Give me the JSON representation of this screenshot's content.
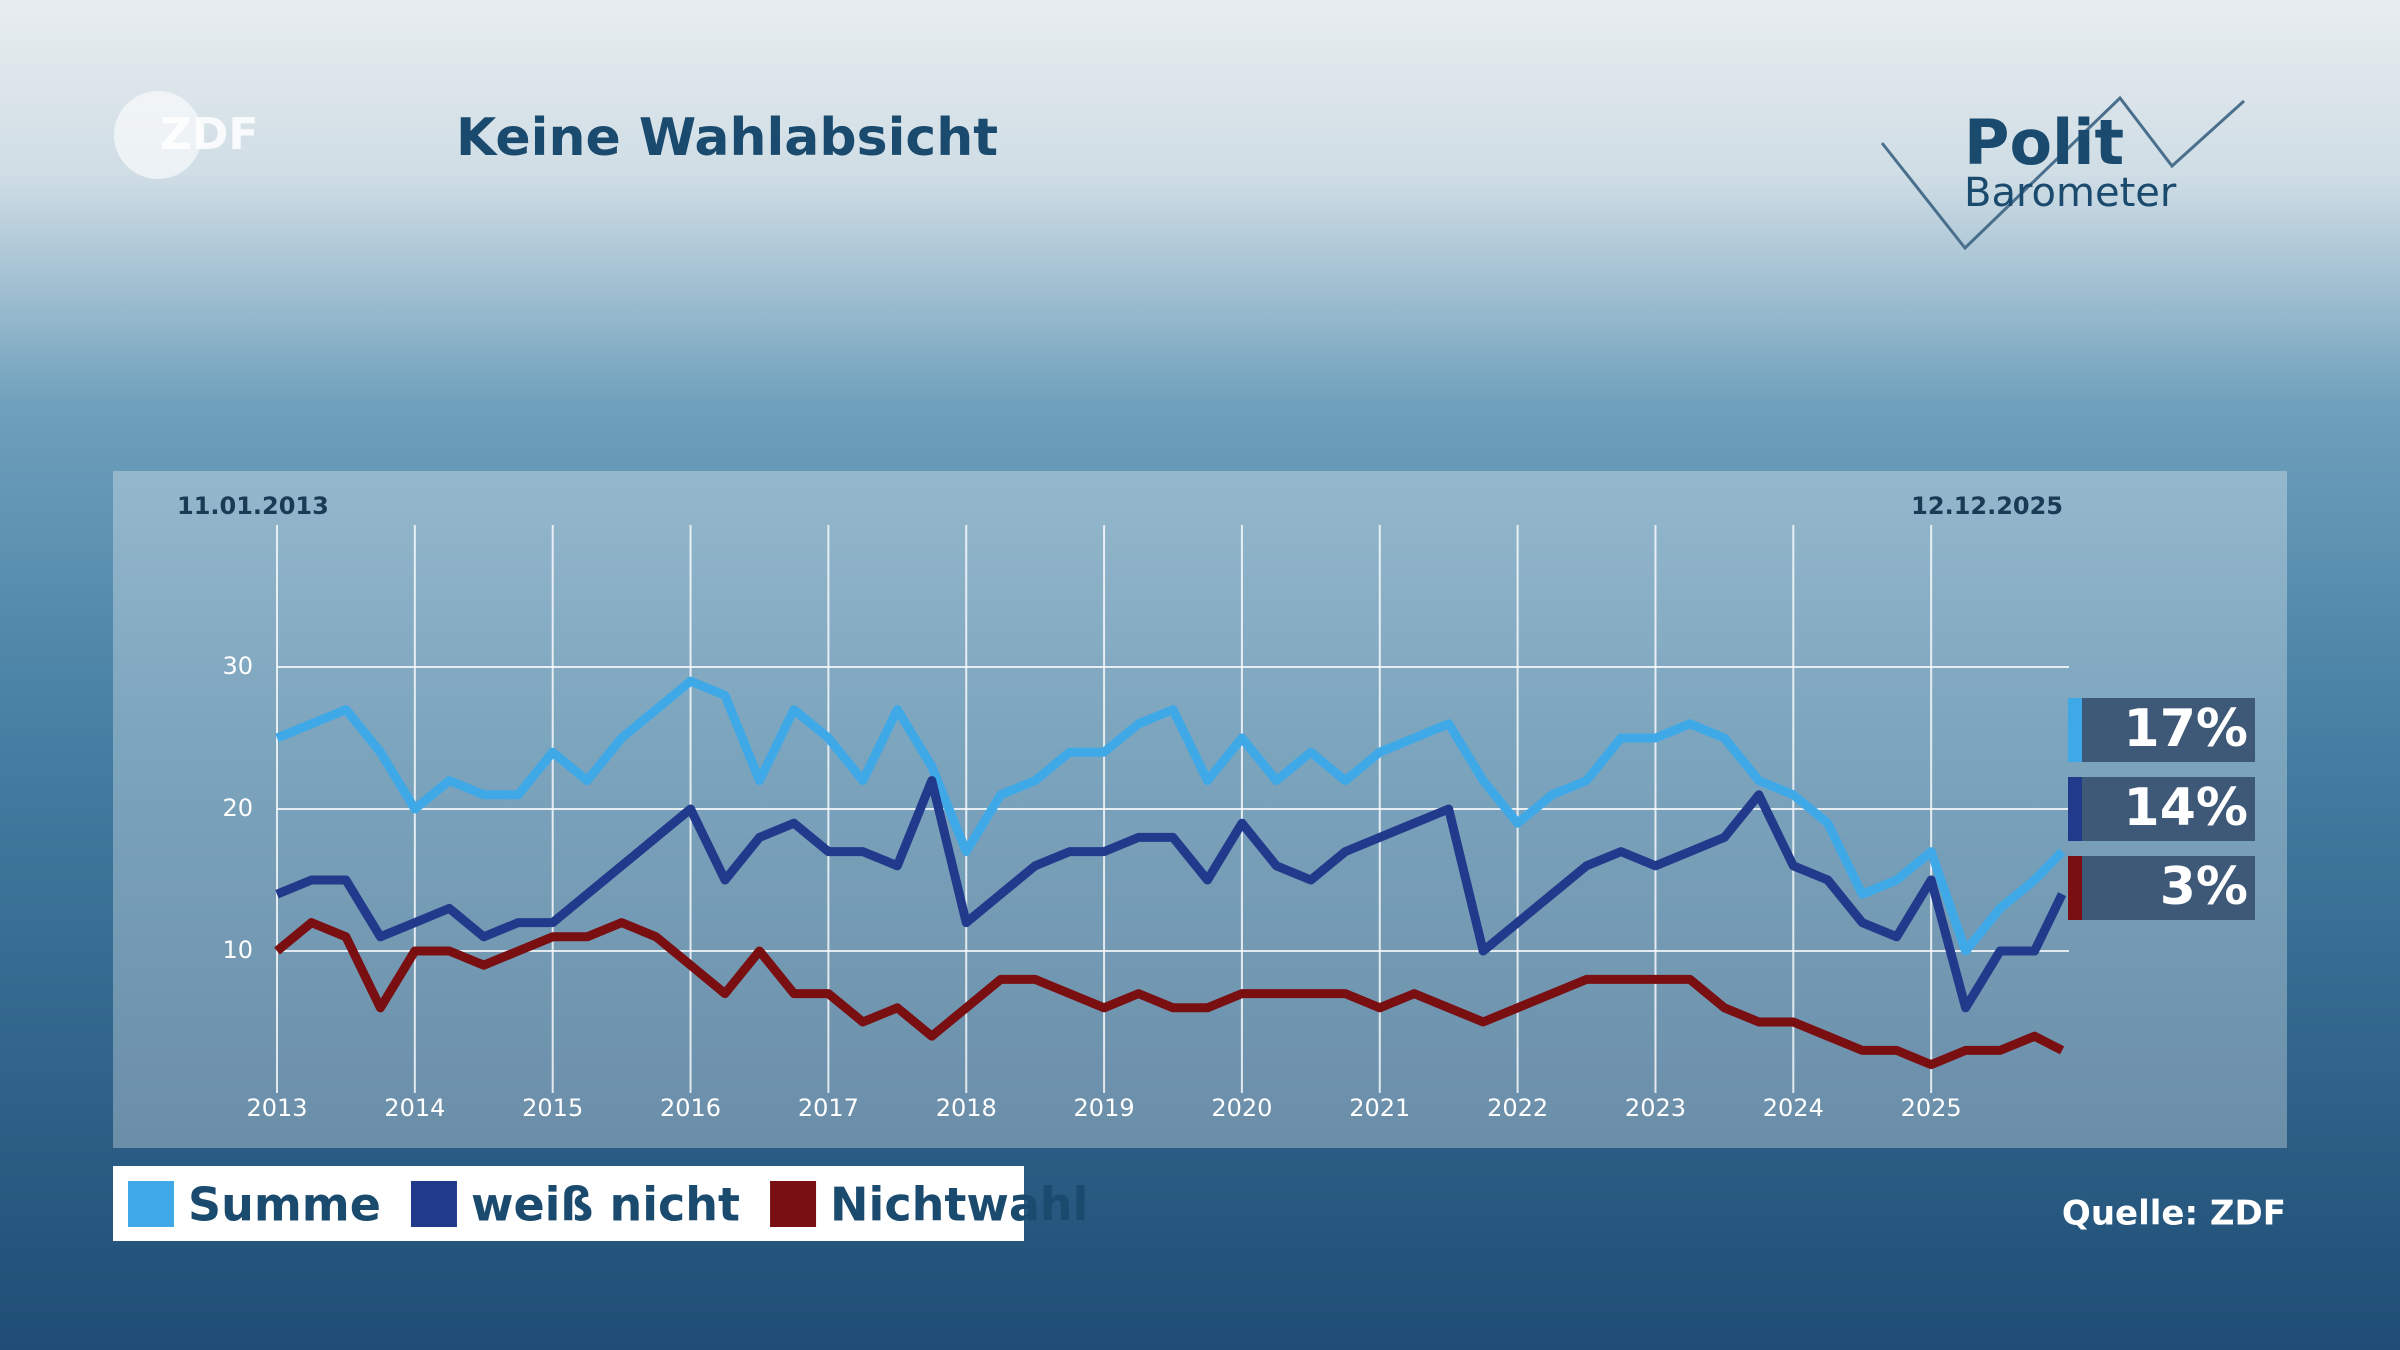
{
  "logo": "ZDF",
  "brand_title": "Polit",
  "brand_subtitle": "Barometer",
  "chart_data": {
    "type": "line",
    "title": "Keine Wahlabsicht",
    "source": "Quelle: ZDF",
    "start_label": "11.01.2013",
    "end_label": "12.12.2025",
    "x": [
      2013,
      2013.25,
      2013.5,
      2013.75,
      2014,
      2014.25,
      2014.5,
      2014.75,
      2015,
      2015.25,
      2015.5,
      2015.75,
      2016,
      2016.25,
      2016.5,
      2016.75,
      2017,
      2017.25,
      2017.5,
      2017.75,
      2018,
      2018.25,
      2018.5,
      2018.75,
      2019,
      2019.25,
      2019.5,
      2019.75,
      2020,
      2020.25,
      2020.5,
      2020.75,
      2021,
      2021.25,
      2021.5,
      2021.75,
      2022,
      2022.25,
      2022.5,
      2022.75,
      2023,
      2023.25,
      2023.5,
      2023.75,
      2024,
      2024.25,
      2024.5,
      2024.75,
      2025,
      2025.25,
      2025.5,
      2025.75,
      2025.95
    ],
    "series": [
      {
        "name": "Summe",
        "color": "#3fa9e8",
        "value_label": "17%",
        "values": [
          25,
          26,
          27,
          24,
          20,
          22,
          21,
          21,
          24,
          22,
          25,
          27,
          29,
          28,
          22,
          27,
          25,
          22,
          27,
          23,
          17,
          21,
          22,
          24,
          24,
          26,
          27,
          22,
          25,
          22,
          24,
          22,
          24,
          25,
          26,
          22,
          19,
          21,
          22,
          25,
          25,
          26,
          25,
          22,
          21,
          19,
          14,
          15,
          17,
          10,
          13,
          15,
          17
        ]
      },
      {
        "name": "weiß nicht",
        "color": "#223a8c",
        "value_label": "14%",
        "values": [
          14,
          15,
          15,
          11,
          12,
          13,
          11,
          12,
          12,
          14,
          16,
          18,
          20,
          15,
          18,
          19,
          17,
          17,
          16,
          22,
          12,
          14,
          16,
          17,
          17,
          18,
          18,
          15,
          19,
          16,
          15,
          17,
          18,
          19,
          20,
          10,
          12,
          14,
          16,
          17,
          16,
          17,
          18,
          21,
          16,
          15,
          12,
          11,
          15,
          6,
          10,
          10,
          14
        ]
      },
      {
        "name": "Nichtwahl",
        "color": "#7a0f12",
        "value_label": "3%",
        "values": [
          10,
          12,
          11,
          6,
          10,
          10,
          9,
          10,
          11,
          11,
          12,
          11,
          9,
          7,
          10,
          7,
          7,
          5,
          6,
          4,
          6,
          8,
          8,
          7,
          6,
          7,
          6,
          6,
          7,
          7,
          7,
          7,
          6,
          7,
          6,
          5,
          6,
          7,
          8,
          8,
          8,
          8,
          6,
          5,
          5,
          4,
          3,
          3,
          2,
          3,
          3,
          4,
          3
        ]
      }
    ],
    "xlim": [
      2013,
      2026
    ],
    "ylim": [
      0,
      40
    ],
    "xticks": [
      2013,
      2014,
      2015,
      2016,
      2017,
      2018,
      2019,
      2020,
      2021,
      2022,
      2023,
      2024,
      2025
    ],
    "yticks": [
      10,
      20,
      30
    ],
    "grid": true
  }
}
